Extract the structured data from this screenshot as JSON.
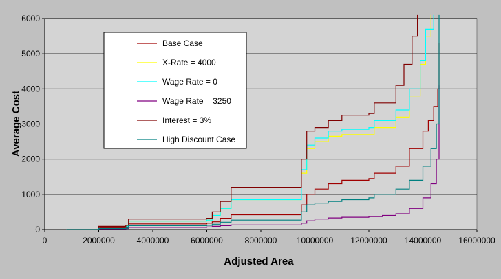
{
  "chart_data": {
    "type": "line",
    "xlabel": "Adjusted Area",
    "ylabel": "Average Cost",
    "xlim": [
      0,
      16000000
    ],
    "ylim": [
      0,
      6000
    ],
    "x_ticks": [
      0,
      2000000,
      4000000,
      6000000,
      8000000,
      10000000,
      12000000,
      14000000,
      16000000
    ],
    "y_ticks": [
      0,
      1000,
      2000,
      3000,
      4000,
      5000,
      6000
    ],
    "grid": "horizontal",
    "legend_position": "upper-left-inside",
    "series": [
      {
        "name": "Base Case",
        "color": "#a00000",
        "x": [
          800000,
          2000000,
          3000000,
          3100000,
          6000000,
          6200000,
          6500000,
          6900000,
          9400000,
          9500000,
          9700000,
          10000000,
          10500000,
          11000000,
          12000000,
          12200000,
          13000000,
          13500000,
          14000000,
          14200000,
          14400000,
          14550000,
          14600000
        ],
        "y": [
          0,
          50,
          60,
          160,
          180,
          220,
          320,
          420,
          420,
          700,
          1000,
          1150,
          1300,
          1400,
          1450,
          1600,
          1800,
          2300,
          2800,
          3100,
          3500,
          4000,
          5300
        ]
      },
      {
        "name": "X-Rate = 4000",
        "color": "#ffff00",
        "x": [
          800000,
          2000000,
          3000000,
          3100000,
          6000000,
          6200000,
          6500000,
          6900000,
          9400000,
          9500000,
          9700000,
          10000000,
          10500000,
          11000000,
          12000000,
          12200000,
          13000000,
          13500000,
          13900000,
          14100000,
          14300000
        ],
        "y": [
          0,
          70,
          90,
          240,
          270,
          400,
          600,
          850,
          850,
          1600,
          2300,
          2500,
          2650,
          2700,
          2700,
          2900,
          3200,
          3800,
          4700,
          5500,
          6100
        ]
      },
      {
        "name": "Wage Rate = 0",
        "color": "#00ffff",
        "x": [
          800000,
          2000000,
          3000000,
          3100000,
          6000000,
          6200000,
          6500000,
          6900000,
          9400000,
          9500000,
          9700000,
          10000000,
          10500000,
          11000000,
          12000000,
          12200000,
          13000000,
          13500000,
          13900000,
          14100000,
          14400000
        ],
        "y": [
          0,
          70,
          90,
          240,
          270,
          400,
          600,
          850,
          850,
          1700,
          2400,
          2600,
          2800,
          2850,
          2900,
          3100,
          3400,
          4000,
          4800,
          5700,
          6100
        ]
      },
      {
        "name": "Wage Rate = 3250",
        "color": "#800080",
        "x": [
          800000,
          2000000,
          3000000,
          3100000,
          6000000,
          6200000,
          6500000,
          6900000,
          9400000,
          9500000,
          9700000,
          10000000,
          10500000,
          11000000,
          12000000,
          12500000,
          13000000,
          13500000,
          14000000,
          14300000,
          14500000,
          14600000
        ],
        "y": [
          0,
          20,
          30,
          60,
          70,
          90,
          110,
          130,
          130,
          180,
          250,
          300,
          330,
          350,
          370,
          400,
          450,
          600,
          900,
          1300,
          2000,
          4100
        ]
      },
      {
        "name": "Interest = 3%",
        "color": "#800000",
        "x": [
          800000,
          2000000,
          3000000,
          3100000,
          6000000,
          6200000,
          6500000,
          6900000,
          9400000,
          9500000,
          9700000,
          10000000,
          10500000,
          11000000,
          12000000,
          12200000,
          13000000,
          13300000,
          13600000,
          13800000
        ],
        "y": [
          0,
          90,
          120,
          300,
          320,
          500,
          800,
          1200,
          1200,
          2000,
          2800,
          2900,
          3100,
          3250,
          3300,
          3600,
          4100,
          4700,
          5500,
          6100
        ]
      },
      {
        "name": "High Discount Case",
        "color": "#008080",
        "x": [
          800000,
          2000000,
          3000000,
          3100000,
          6000000,
          6200000,
          6500000,
          6900000,
          9400000,
          9500000,
          9700000,
          10000000,
          10500000,
          11000000,
          12000000,
          12200000,
          13000000,
          13500000,
          14000000,
          14300000,
          14500000,
          14600000
        ],
        "y": [
          0,
          30,
          40,
          110,
          120,
          150,
          210,
          270,
          270,
          500,
          700,
          750,
          800,
          850,
          900,
          1000,
          1150,
          1400,
          1800,
          2300,
          3000,
          6100
        ]
      }
    ]
  }
}
